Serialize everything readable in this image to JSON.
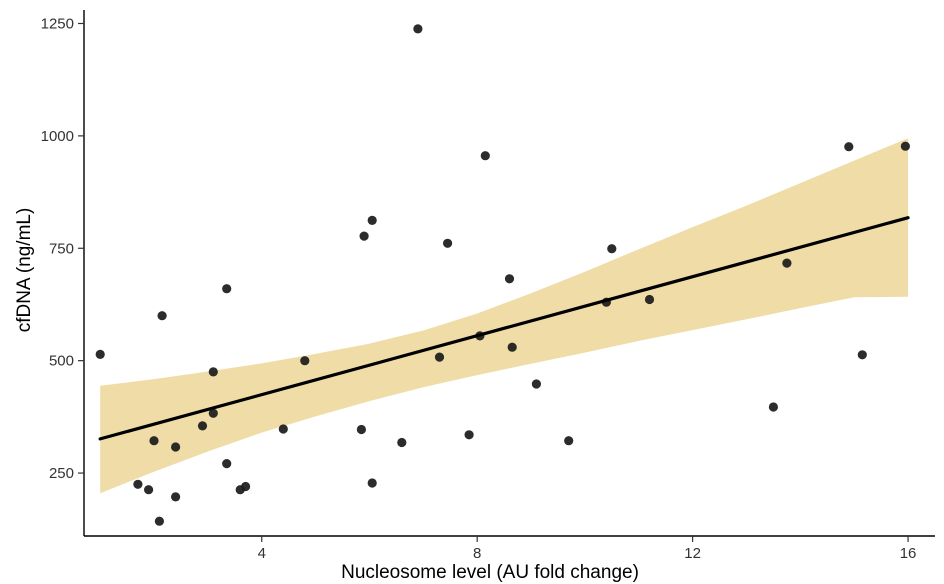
{
  "chart_data": {
    "type": "scatter",
    "title": "",
    "xlabel": "Nucleosome level (AU fold change)",
    "ylabel": "cfDNA (ng/mL)",
    "xlim": [
      0.7,
      16.5
    ],
    "ylim": [
      110,
      1280
    ],
    "x_ticks": [
      4,
      8,
      12,
      16
    ],
    "y_ticks": [
      250,
      500,
      750,
      1000,
      1250
    ],
    "grid": false,
    "legend": "none",
    "colors": {
      "points": "#1a1a1a",
      "fit_line": "#000000",
      "confidence_band": "#ecd28e",
      "axis": "#000000"
    },
    "points": [
      {
        "x": 1.0,
        "y": 514
      },
      {
        "x": 1.7,
        "y": 225
      },
      {
        "x": 1.9,
        "y": 213
      },
      {
        "x": 2.0,
        "y": 322
      },
      {
        "x": 2.1,
        "y": 143
      },
      {
        "x": 2.15,
        "y": 600
      },
      {
        "x": 2.4,
        "y": 308
      },
      {
        "x": 2.4,
        "y": 197
      },
      {
        "x": 2.9,
        "y": 355
      },
      {
        "x": 3.1,
        "y": 383
      },
      {
        "x": 3.1,
        "y": 475
      },
      {
        "x": 3.35,
        "y": 660
      },
      {
        "x": 3.35,
        "y": 271
      },
      {
        "x": 3.6,
        "y": 213
      },
      {
        "x": 3.7,
        "y": 220
      },
      {
        "x": 4.4,
        "y": 348
      },
      {
        "x": 4.8,
        "y": 500
      },
      {
        "x": 5.85,
        "y": 347
      },
      {
        "x": 5.9,
        "y": 777
      },
      {
        "x": 6.05,
        "y": 812
      },
      {
        "x": 6.05,
        "y": 228
      },
      {
        "x": 6.6,
        "y": 318
      },
      {
        "x": 6.9,
        "y": 1238
      },
      {
        "x": 7.3,
        "y": 508
      },
      {
        "x": 7.45,
        "y": 761
      },
      {
        "x": 7.85,
        "y": 335
      },
      {
        "x": 8.05,
        "y": 555
      },
      {
        "x": 8.15,
        "y": 956
      },
      {
        "x": 8.6,
        "y": 682
      },
      {
        "x": 8.65,
        "y": 530
      },
      {
        "x": 9.1,
        "y": 448
      },
      {
        "x": 9.7,
        "y": 322
      },
      {
        "x": 10.4,
        "y": 630
      },
      {
        "x": 10.5,
        "y": 749
      },
      {
        "x": 11.2,
        "y": 636
      },
      {
        "x": 13.5,
        "y": 397
      },
      {
        "x": 13.75,
        "y": 717
      },
      {
        "x": 14.9,
        "y": 976
      },
      {
        "x": 15.15,
        "y": 513
      },
      {
        "x": 15.95,
        "y": 977
      }
    ],
    "fit_line": [
      {
        "x": 1.0,
        "y": 326
      },
      {
        "x": 16.0,
        "y": 818
      }
    ],
    "confidence_band": {
      "x": [
        1.0,
        2.0,
        3.0,
        4.0,
        5.0,
        6.0,
        7.0,
        8.0,
        9.0,
        10.0,
        11.0,
        12.0,
        13.0,
        14.0,
        15.0,
        16.0
      ],
      "upper": [
        444,
        459,
        476,
        494,
        515,
        538,
        567,
        605,
        650,
        698,
        748,
        797,
        845,
        895,
        945,
        995
      ],
      "lower": [
        205,
        253,
        298,
        340,
        376,
        410,
        441,
        468,
        493,
        518,
        544,
        568,
        592,
        617,
        641,
        642
      ]
    }
  }
}
